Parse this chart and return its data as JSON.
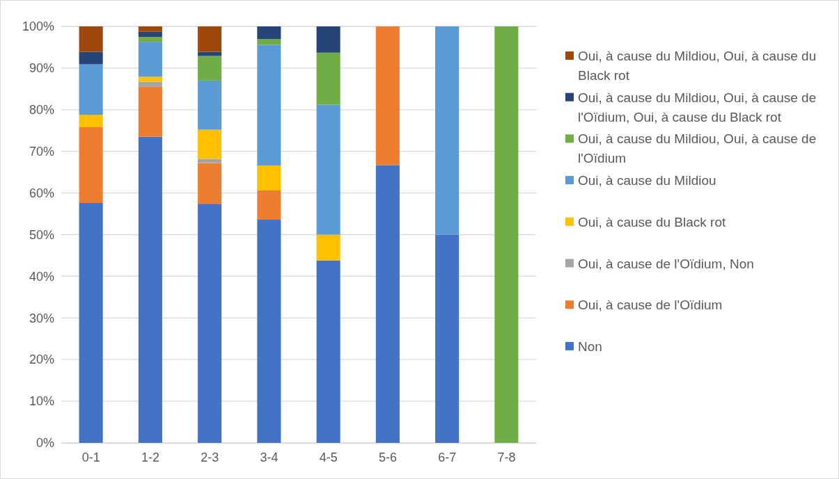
{
  "chart_data": {
    "type": "bar",
    "stacked": true,
    "categories": [
      "0-1",
      "1-2",
      "2-3",
      "3-4",
      "4-5",
      "5-6",
      "6-7",
      "7-8"
    ],
    "series": [
      {
        "name": "Non",
        "color": "#4472c4",
        "values": [
          57.6,
          73.5,
          57.4,
          53.6,
          43.8,
          66.7,
          50,
          0
        ]
      },
      {
        "name": "Oui, à cause de l'Oïdium",
        "color": "#ed7d31",
        "values": [
          18.2,
          12.0,
          9.8,
          7.0,
          0,
          33.3,
          0,
          0
        ]
      },
      {
        "name": "Oui, à cause de l'Oïdium, Non",
        "color": "#a5a5a5",
        "values": [
          0,
          1.2,
          1.0,
          0,
          0,
          0,
          0,
          0
        ]
      },
      {
        "name": "Oui, à cause du Black rot",
        "color": "#ffc000",
        "values": [
          3.0,
          1.2,
          7.0,
          6.0,
          6.2,
          0,
          0,
          0
        ]
      },
      {
        "name": "Oui, à cause du Mildiou",
        "color": "#5b9bd5",
        "values": [
          12.1,
          8.4,
          11.8,
          29.0,
          31.2,
          0,
          50,
          0
        ]
      },
      {
        "name": "Oui, à cause du Mildiou, Oui, à cause de l'Oïdium",
        "color": "#70ad47",
        "values": [
          0,
          1.2,
          5.9,
          1.4,
          12.5,
          0,
          0,
          100
        ]
      },
      {
        "name": "Oui, à cause du Mildiou, Oui, à cause de l'Oïdium, Oui, à cause du Black rot",
        "color": "#264478",
        "values": [
          3.0,
          1.2,
          1.0,
          3.0,
          6.3,
          0,
          0,
          0
        ]
      },
      {
        "name": "Oui, à cause du Mildiou, Oui, à cause du Black rot",
        "color": "#9e480e",
        "values": [
          6.1,
          1.3,
          6.1,
          0,
          0,
          0,
          0,
          0
        ]
      }
    ],
    "ylim": [
      0,
      100
    ],
    "yticks": [
      {
        "value": 0,
        "label": "0%"
      },
      {
        "value": 10,
        "label": "10%"
      },
      {
        "value": 20,
        "label": "20%"
      },
      {
        "value": 30,
        "label": "30%"
      },
      {
        "value": 40,
        "label": "40%"
      },
      {
        "value": 50,
        "label": "50%"
      },
      {
        "value": 60,
        "label": "60%"
      },
      {
        "value": 70,
        "label": "70%"
      },
      {
        "value": 80,
        "label": "80%"
      },
      {
        "value": 90,
        "label": "90%"
      },
      {
        "value": 100,
        "label": "100%"
      }
    ],
    "grid": "y",
    "legend": "right"
  }
}
